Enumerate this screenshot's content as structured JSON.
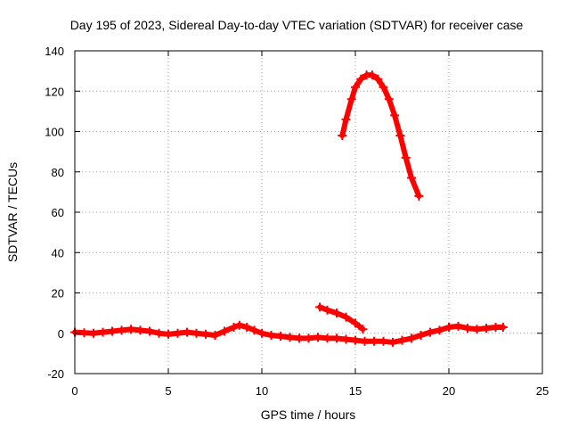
{
  "chart_data": {
    "type": "scatter",
    "title": "Day 195 of 2023, Sidereal Day-to-day VTEC variation (SDTVAR) for receiver case",
    "xlabel": "GPS time / hours",
    "ylabel": "SDTVAR / TECUs",
    "xlim": [
      0,
      25
    ],
    "ylim": [
      -20,
      140
    ],
    "xticks": [
      0,
      5,
      10,
      15,
      20,
      25
    ],
    "yticks": [
      -20,
      0,
      20,
      40,
      60,
      80,
      100,
      120,
      140
    ],
    "grid": true,
    "marker": "plus",
    "series": [
      {
        "name": "baseline",
        "color": "#ff0000",
        "x": [
          0.0,
          0.5,
          1.0,
          1.5,
          2.0,
          2.5,
          3.0,
          3.5,
          4.0,
          4.5,
          5.0,
          5.5,
          6.0,
          6.5,
          7.0,
          7.5,
          8.0,
          8.5,
          8.8,
          9.2,
          9.6,
          10.0,
          10.5,
          11.0,
          11.5,
          12.0,
          12.5,
          13.0,
          13.5,
          14.0,
          14.5,
          15.0,
          15.5,
          16.0,
          16.5,
          17.0,
          17.5,
          18.0,
          18.5,
          19.0,
          19.5,
          20.0,
          20.5,
          21.0,
          21.5,
          22.0,
          22.5,
          22.9
        ],
        "y": [
          0.5,
          0.2,
          0.0,
          0.5,
          1.0,
          1.5,
          2.0,
          1.5,
          1.0,
          0.0,
          -0.5,
          0.0,
          0.5,
          0.0,
          -0.5,
          -1.0,
          1.0,
          3.0,
          4.0,
          3.0,
          1.5,
          0.0,
          -1.0,
          -1.5,
          -2.0,
          -2.5,
          -2.5,
          -2.0,
          -2.5,
          -2.5,
          -3.0,
          -3.5,
          -4.0,
          -4.0,
          -4.0,
          -4.5,
          -3.5,
          -2.5,
          -1.0,
          0.5,
          1.5,
          3.0,
          3.5,
          2.5,
          2.0,
          2.5,
          3.0,
          3.0
        ]
      },
      {
        "name": "segment-2",
        "color": "#ff0000",
        "x": [
          13.1,
          13.5,
          14.0,
          14.5,
          15.0,
          15.4
        ],
        "y": [
          13.0,
          11.5,
          10.0,
          8.0,
          5.0,
          2.0
        ]
      },
      {
        "name": "segment-3",
        "color": "#ff0000",
        "x": [
          14.3,
          14.5,
          14.8,
          15.0,
          15.3,
          15.6,
          15.9,
          16.2,
          16.5,
          16.8,
          17.1,
          17.4,
          17.7,
          18.0,
          18.4
        ],
        "y": [
          98.0,
          106.0,
          116.0,
          122.0,
          126.0,
          128.0,
          128.0,
          126.0,
          122.0,
          116.0,
          108.0,
          98.0,
          87.0,
          77.0,
          68.0
        ]
      }
    ]
  }
}
